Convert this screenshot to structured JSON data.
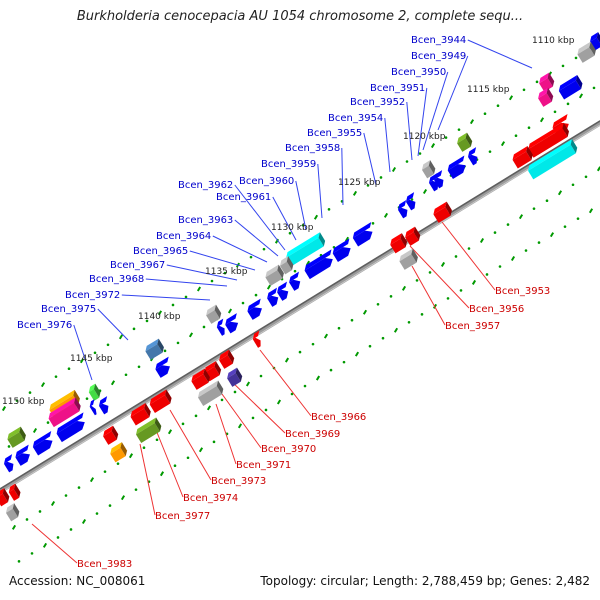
{
  "title": "Burkholderia cenocepacia AU 1054 chromosome 2, complete sequ...",
  "accession": "Accession: NC_008061",
  "summary": "Topology: circular; Length: 2,788,459 bp; Genes: 2,482",
  "colors": {
    "chromosome": "#808080",
    "plus_label": "#0000cc",
    "minus_label": "#cc0000",
    "dots": "#009900",
    "leader_plus": "#3344ee",
    "leader_minus": "#ee3333"
  },
  "scale_labels": [
    "1110 kbp",
    "1115 kbp",
    "1120 kbp",
    "1125 kbp",
    "1130 kbp",
    "1135 kbp",
    "1140 kbp",
    "1145 kbp",
    "1150 kbp"
  ],
  "plus_labels": [
    "Bcen_3944",
    "Bcen_3949",
    "Bcen_3950",
    "Bcen_3951",
    "Bcen_3952",
    "Bcen_3954",
    "Bcen_3955",
    "Bcen_3958",
    "Bcen_3959",
    "Bcen_3960",
    "Bcen_3961",
    "Bcen_3962",
    "Bcen_3963",
    "Bcen_3964",
    "Bcen_3965",
    "Bcen_3967",
    "Bcen_3968",
    "Bcen_3972",
    "Bcen_3975",
    "Bcen_3976"
  ],
  "minus_labels": [
    "Bcen_3953",
    "Bcen_3956",
    "Bcen_3957",
    "Bcen_3966",
    "Bcen_3969",
    "Bcen_3970",
    "Bcen_3971",
    "Bcen_3973",
    "Bcen_3974",
    "Bcen_3977",
    "Bcen_3983"
  ]
}
